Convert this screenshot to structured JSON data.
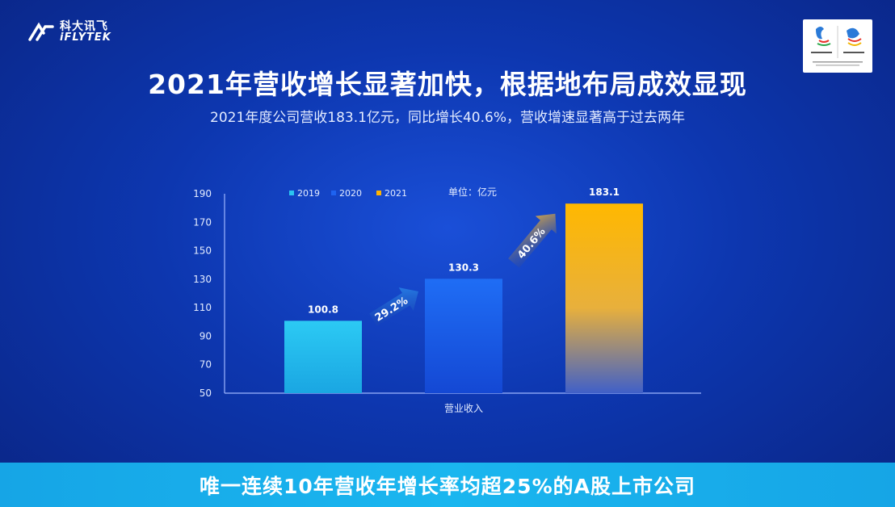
{
  "logo": {
    "cn": "科大讯飞",
    "en": "iFLYTEK"
  },
  "title": "2021年营收增长显著加快，根据地布局成效显现",
  "subtitle": "2021年度公司营收183.1亿元，同比增长40.6%，营收增速显著高于过去两年",
  "footer": "唯一连续10年营收年增长率均超25%的A股上市公司",
  "chart_data": {
    "type": "bar",
    "categories": [
      "2019",
      "2020",
      "2021"
    ],
    "values": [
      100.8,
      130.3,
      183.1
    ],
    "xlabel": "营业收入",
    "unit_label": "单位：亿元",
    "yticks": [
      50,
      70,
      90,
      110,
      130,
      150,
      170,
      190
    ],
    "ylim": [
      50,
      190
    ],
    "legend": [
      "2019",
      "2020",
      "2021"
    ],
    "legend_position": "top-left",
    "growth_annotations": [
      {
        "from": "2019",
        "to": "2020",
        "label": "29.2%"
      },
      {
        "from": "2020",
        "to": "2021",
        "label": "40.6%"
      }
    ],
    "colors": {
      "2019": "#2bc4f0",
      "2020": "#1e63f0",
      "2021": "#ffb400"
    }
  }
}
